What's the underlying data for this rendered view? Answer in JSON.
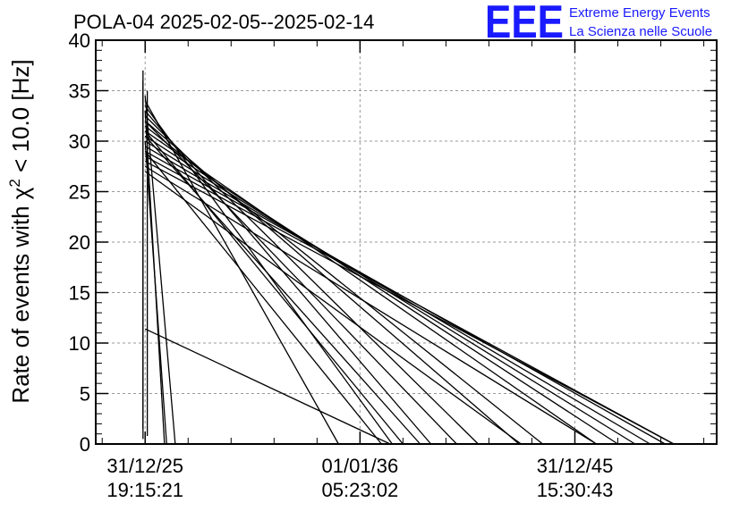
{
  "header": {
    "title": "POLA-04 2025-02-05--2025-02-14",
    "logo": "EEE",
    "org_line1": "Extreme Energy Events",
    "org_line2": "La Scienza nelle Scuole",
    "brand_color": "#1a1aff"
  },
  "chart_data": {
    "type": "line",
    "ylabel": "Rate of events with χ² < 10.0 [Hz]",
    "ylim": [
      0,
      40
    ],
    "y_ticks": [
      0,
      5,
      10,
      15,
      20,
      25,
      30,
      35,
      40
    ],
    "x_tick_labels": [
      {
        "date": "31/12/25",
        "time": "19:15:21"
      },
      {
        "date": "01/01/36",
        "time": "05:23:02"
      },
      {
        "date": "31/12/45",
        "time": "15:30:43"
      }
    ],
    "x_ticks": [
      0,
      10,
      20
    ],
    "xlim": [
      -2.3,
      26.6
    ],
    "grid": true,
    "line_color": "#000000",
    "segments": [
      [
        [
          -0.1,
          37.0
        ],
        [
          -0.1,
          1.5
        ]
      ],
      [
        [
          -0.1,
          36.0
        ],
        [
          -0.1,
          0.5
        ]
      ],
      [
        [
          0.1,
          35.0
        ],
        [
          0.1,
          0.8
        ]
      ],
      [
        [
          0.0,
          34.5
        ],
        [
          1.4,
          0.0
        ]
      ],
      [
        [
          0.0,
          33.0
        ],
        [
          0.9,
          0.0
        ]
      ],
      [
        [
          0.0,
          30.0
        ],
        [
          1.0,
          0.0
        ]
      ],
      [
        [
          0.0,
          11.4
        ],
        [
          11.4,
          0.0
        ]
      ],
      [
        [
          0.0,
          34.0
        ],
        [
          9.0,
          0.0
        ]
      ],
      [
        [
          0.0,
          33.5
        ],
        [
          11.5,
          0.0
        ]
      ],
      [
        [
          0.0,
          33.0
        ],
        [
          13.3,
          0.0
        ]
      ],
      [
        [
          0.0,
          32.5
        ],
        [
          15.5,
          0.0
        ]
      ],
      [
        [
          0.0,
          32.0
        ],
        [
          17.4,
          0.0
        ]
      ],
      [
        [
          0.0,
          31.5
        ],
        [
          18.5,
          0.0
        ]
      ],
      [
        [
          0.0,
          31.0
        ],
        [
          21.0,
          0.0
        ]
      ],
      [
        [
          0.0,
          30.5
        ],
        [
          22.0,
          0.0
        ]
      ],
      [
        [
          0.0,
          30.0
        ],
        [
          22.8,
          0.0
        ]
      ],
      [
        [
          0.0,
          29.5
        ],
        [
          23.5,
          0.0
        ]
      ],
      [
        [
          0.0,
          29.0
        ],
        [
          24.2,
          0.0
        ]
      ],
      [
        [
          0.0,
          28.5
        ],
        [
          24.6,
          0.0
        ]
      ],
      [
        [
          0.0,
          28.0
        ],
        [
          24.6,
          0.0
        ]
      ],
      [
        [
          0.0,
          27.5
        ],
        [
          21.0,
          0.0
        ]
      ],
      [
        [
          0.0,
          27.0
        ],
        [
          17.5,
          0.0
        ]
      ],
      [
        [
          0.0,
          32.0
        ],
        [
          14.5,
          0.0
        ]
      ],
      [
        [
          0.0,
          30.5
        ],
        [
          12.8,
          0.0
        ]
      ],
      [
        [
          0.0,
          29.0
        ],
        [
          11.0,
          0.0
        ]
      ],
      [
        [
          0.0,
          31.0
        ],
        [
          12.0,
          0.0
        ]
      ]
    ]
  }
}
